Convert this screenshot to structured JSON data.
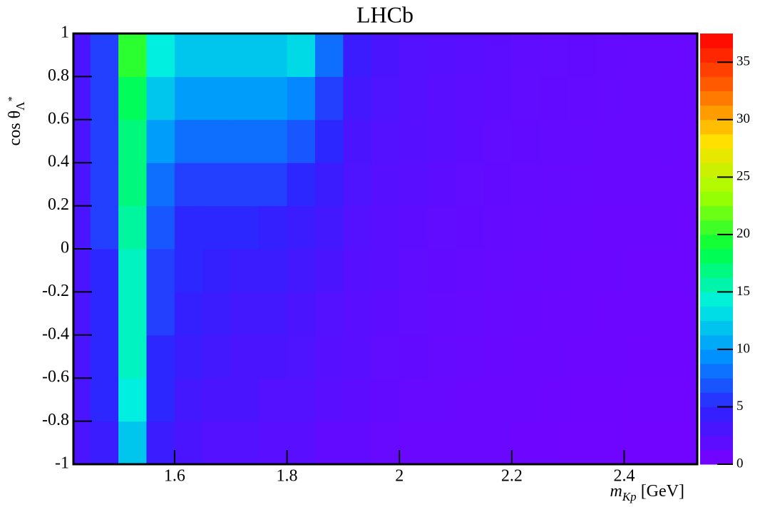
{
  "chart_data": {
    "type": "heatmap",
    "title": "LHCb",
    "xlabel": "m",
    "xlabel_sub": "Kp",
    "xlabel_unit": "[GeV]",
    "ylabel": "cos θ",
    "ylabel_sub": "Λ",
    "ylabel_sup": "*",
    "x_edges": [
      1.42,
      1.45,
      1.5,
      1.55,
      1.6,
      1.65,
      1.7,
      1.75,
      1.8,
      1.85,
      1.9,
      1.95,
      2.0,
      2.05,
      2.1,
      2.15,
      2.2,
      2.25,
      2.3,
      2.35,
      2.4,
      2.45,
      2.5,
      2.53
    ],
    "y_edges": [
      -1,
      -0.8,
      -0.6,
      -0.4,
      -0.2,
      0,
      0.2,
      0.4,
      0.6,
      0.8,
      1
    ],
    "z": [
      [
        3,
        4,
        12,
        4,
        3,
        2.5,
        2.5,
        2,
        2,
        1.5,
        1.5,
        1.2,
        1,
        1,
        1,
        1,
        0.8,
        0.8,
        0.7,
        0.7,
        0.6,
        0.6,
        0.6
      ],
      [
        3,
        5,
        14,
        5,
        3.5,
        3,
        3,
        2.5,
        2.5,
        2,
        1.8,
        1.5,
        1.2,
        1.2,
        1,
        1,
        1,
        0.9,
        0.8,
        0.8,
        0.7,
        0.7,
        0.7
      ],
      [
        3,
        5,
        15,
        5,
        4,
        3.5,
        3,
        3,
        2.8,
        2.2,
        2,
        1.6,
        1.5,
        1.3,
        1.2,
        1.1,
        1,
        1,
        0.9,
        0.9,
        0.8,
        0.8,
        0.8
      ],
      [
        3,
        5,
        15,
        6,
        4.5,
        4,
        3.5,
        3.5,
        3,
        2.5,
        2,
        1.8,
        1.6,
        1.4,
        1.3,
        1.2,
        1.1,
        1,
        1,
        0.9,
        0.9,
        0.8,
        0.8
      ],
      [
        3,
        5,
        15,
        6,
        5,
        4.5,
        4,
        4,
        3.5,
        3,
        2.2,
        2,
        1.7,
        1.5,
        1.4,
        1.3,
        1.2,
        1.1,
        1,
        1,
        0.9,
        0.9,
        0.9
      ],
      [
        3,
        6,
        16,
        7,
        5,
        5,
        5,
        4.5,
        4,
        3.5,
        2.5,
        2.1,
        1.8,
        1.6,
        1.5,
        1.4,
        1.3,
        1.2,
        1.1,
        1,
        1,
        1,
        0.9
      ],
      [
        3,
        6,
        17,
        8,
        6,
        6,
        6,
        6,
        5,
        4,
        2.8,
        2.3,
        2,
        1.8,
        1.6,
        1.5,
        1.4,
        1.3,
        1.2,
        1.1,
        1.1,
        1,
        1
      ],
      [
        3,
        6,
        17,
        10,
        8,
        8,
        8,
        8,
        7,
        5,
        3,
        2.5,
        2.2,
        2,
        1.8,
        1.6,
        1.5,
        1.4,
        1.3,
        1.2,
        1.2,
        1.1,
        1
      ],
      [
        3,
        6,
        18,
        12,
        10,
        10,
        10,
        10,
        9,
        6,
        3.5,
        2.8,
        2.4,
        2.1,
        1.9,
        1.8,
        1.6,
        1.5,
        1.4,
        1.3,
        1.2,
        1.1,
        1.1
      ],
      [
        3,
        6,
        20,
        14,
        12,
        12,
        12,
        12,
        13,
        8,
        4,
        3,
        2.5,
        2.2,
        2,
        1.9,
        1.7,
        1.6,
        1.5,
        1.4,
        1.3,
        1.2,
        1.1
      ]
    ],
    "xlim": [
      1.42,
      2.53
    ],
    "ylim": [
      -1,
      1
    ],
    "zlim": [
      0,
      37.5
    ],
    "xticks": [
      1.6,
      1.8,
      2,
      2.2,
      2.4
    ],
    "yticks": [
      -1,
      -0.8,
      -0.6,
      -0.4,
      -0.2,
      0,
      0.2,
      0.4,
      0.6,
      0.8,
      1
    ],
    "zticks": [
      0,
      5,
      10,
      15,
      20,
      25,
      30,
      35
    ],
    "palette": [
      "#7a00ff",
      "#3020ff",
      "#0090ff",
      "#00f0e0",
      "#00ff40",
      "#a0ff00",
      "#ffe000",
      "#ff6000",
      "#ff0000"
    ]
  }
}
